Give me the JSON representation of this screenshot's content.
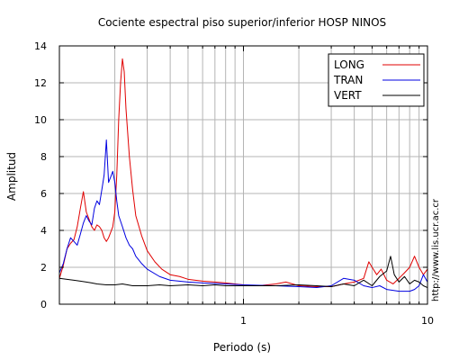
{
  "chart_data": {
    "type": "line",
    "title": "Cociente espectral piso superior/inferior  HOSP NINOS",
    "xlabel": "Periodo (s)",
    "ylabel": "Amplitud",
    "x_scale": "log",
    "xlim": [
      0.1,
      10
    ],
    "ylim": [
      0,
      14
    ],
    "x_tick_labels": [
      {
        "value": 1,
        "label": "1"
      },
      {
        "value": 10,
        "label": "10"
      }
    ],
    "y_ticks": [
      {
        "value": 0,
        "label": "0"
      },
      {
        "value": 2,
        "label": "2"
      },
      {
        "value": 4,
        "label": "4"
      },
      {
        "value": 6,
        "label": "6"
      },
      {
        "value": 8,
        "label": "8"
      },
      {
        "value": 10,
        "label": "10"
      },
      {
        "value": 12,
        "label": "12"
      },
      {
        "value": 14,
        "label": "14"
      }
    ],
    "grid": true,
    "legend_position": "top-right",
    "series": [
      {
        "name": "LONG",
        "color": "#e00000",
        "points": [
          [
            0.1,
            1.4
          ],
          [
            0.105,
            2.1
          ],
          [
            0.11,
            3.0
          ],
          [
            0.115,
            3.3
          ],
          [
            0.12,
            3.5
          ],
          [
            0.125,
            4.2
          ],
          [
            0.13,
            5.2
          ],
          [
            0.135,
            6.1
          ],
          [
            0.14,
            5.0
          ],
          [
            0.145,
            4.6
          ],
          [
            0.15,
            4.2
          ],
          [
            0.155,
            4.0
          ],
          [
            0.16,
            4.3
          ],
          [
            0.165,
            4.2
          ],
          [
            0.17,
            4.0
          ],
          [
            0.175,
            3.6
          ],
          [
            0.18,
            3.4
          ],
          [
            0.185,
            3.6
          ],
          [
            0.19,
            3.9
          ],
          [
            0.195,
            4.2
          ],
          [
            0.2,
            5.0
          ],
          [
            0.205,
            7.0
          ],
          [
            0.21,
            10.0
          ],
          [
            0.215,
            12.0
          ],
          [
            0.22,
            13.3
          ],
          [
            0.225,
            12.6
          ],
          [
            0.23,
            10.6
          ],
          [
            0.24,
            8.0
          ],
          [
            0.25,
            6.2
          ],
          [
            0.26,
            4.8
          ],
          [
            0.28,
            3.7
          ],
          [
            0.3,
            2.9
          ],
          [
            0.33,
            2.3
          ],
          [
            0.36,
            1.9
          ],
          [
            0.4,
            1.6
          ],
          [
            0.45,
            1.5
          ],
          [
            0.5,
            1.35
          ],
          [
            0.6,
            1.25
          ],
          [
            0.7,
            1.2
          ],
          [
            0.8,
            1.15
          ],
          [
            0.9,
            1.1
          ],
          [
            1.0,
            1.05
          ],
          [
            1.2,
            1.0
          ],
          [
            1.5,
            1.1
          ],
          [
            1.7,
            1.2
          ],
          [
            2.0,
            1.0
          ],
          [
            2.5,
            0.95
          ],
          [
            3.0,
            0.95
          ],
          [
            3.5,
            1.1
          ],
          [
            4.0,
            1.2
          ],
          [
            4.5,
            1.4
          ],
          [
            4.8,
            2.3
          ],
          [
            5.0,
            2.0
          ],
          [
            5.3,
            1.6
          ],
          [
            5.6,
            1.9
          ],
          [
            6.0,
            1.3
          ],
          [
            6.5,
            1.1
          ],
          [
            7.0,
            1.4
          ],
          [
            7.5,
            1.7
          ],
          [
            8.0,
            2.0
          ],
          [
            8.5,
            2.6
          ],
          [
            9.0,
            2.0
          ],
          [
            9.5,
            1.6
          ],
          [
            10.0,
            1.9
          ]
        ]
      },
      {
        "name": "TRAN",
        "color": "#0000e0",
        "points": [
          [
            0.1,
            1.7
          ],
          [
            0.105,
            2.2
          ],
          [
            0.11,
            3.0
          ],
          [
            0.115,
            3.6
          ],
          [
            0.12,
            3.4
          ],
          [
            0.125,
            3.2
          ],
          [
            0.13,
            3.8
          ],
          [
            0.135,
            4.4
          ],
          [
            0.14,
            4.8
          ],
          [
            0.145,
            4.5
          ],
          [
            0.15,
            4.3
          ],
          [
            0.155,
            5.2
          ],
          [
            0.16,
            5.6
          ],
          [
            0.165,
            5.4
          ],
          [
            0.17,
            6.2
          ],
          [
            0.175,
            7.0
          ],
          [
            0.18,
            8.9
          ],
          [
            0.185,
            6.6
          ],
          [
            0.19,
            6.9
          ],
          [
            0.195,
            7.2
          ],
          [
            0.2,
            6.6
          ],
          [
            0.205,
            5.6
          ],
          [
            0.21,
            4.8
          ],
          [
            0.22,
            4.2
          ],
          [
            0.23,
            3.6
          ],
          [
            0.24,
            3.2
          ],
          [
            0.25,
            3.0
          ],
          [
            0.26,
            2.6
          ],
          [
            0.28,
            2.2
          ],
          [
            0.3,
            1.9
          ],
          [
            0.35,
            1.5
          ],
          [
            0.4,
            1.3
          ],
          [
            0.5,
            1.2
          ],
          [
            0.6,
            1.15
          ],
          [
            0.8,
            1.1
          ],
          [
            1.0,
            1.05
          ],
          [
            1.5,
            1.0
          ],
          [
            2.0,
            0.95
          ],
          [
            2.5,
            0.9
          ],
          [
            3.0,
            1.0
          ],
          [
            3.5,
            1.4
          ],
          [
            4.0,
            1.3
          ],
          [
            4.5,
            1.0
          ],
          [
            5.0,
            0.9
          ],
          [
            5.5,
            1.0
          ],
          [
            6.0,
            0.8
          ],
          [
            6.5,
            0.75
          ],
          [
            7.0,
            0.7
          ],
          [
            7.5,
            0.7
          ],
          [
            8.0,
            0.7
          ],
          [
            8.5,
            0.8
          ],
          [
            9.0,
            1.0
          ],
          [
            9.5,
            1.6
          ],
          [
            10.0,
            1.2
          ]
        ]
      },
      {
        "name": "VERT",
        "color": "#000000",
        "points": [
          [
            0.1,
            1.4
          ],
          [
            0.11,
            1.35
          ],
          [
            0.12,
            1.3
          ],
          [
            0.13,
            1.25
          ],
          [
            0.14,
            1.2
          ],
          [
            0.15,
            1.15
          ],
          [
            0.16,
            1.1
          ],
          [
            0.18,
            1.05
          ],
          [
            0.2,
            1.05
          ],
          [
            0.22,
            1.1
          ],
          [
            0.25,
            1.0
          ],
          [
            0.3,
            1.0
          ],
          [
            0.35,
            1.05
          ],
          [
            0.4,
            1.0
          ],
          [
            0.5,
            1.05
          ],
          [
            0.6,
            1.0
          ],
          [
            0.7,
            1.05
          ],
          [
            0.8,
            1.0
          ],
          [
            1.0,
            1.0
          ],
          [
            1.5,
            1.0
          ],
          [
            2.0,
            1.05
          ],
          [
            2.5,
            1.0
          ],
          [
            3.0,
            0.95
          ],
          [
            3.5,
            1.1
          ],
          [
            4.0,
            1.0
          ],
          [
            4.5,
            1.3
          ],
          [
            5.0,
            1.0
          ],
          [
            5.5,
            1.5
          ],
          [
            6.0,
            1.8
          ],
          [
            6.3,
            2.6
          ],
          [
            6.6,
            1.6
          ],
          [
            7.0,
            1.2
          ],
          [
            7.5,
            1.5
          ],
          [
            8.0,
            1.1
          ],
          [
            8.5,
            1.3
          ],
          [
            9.0,
            1.2
          ],
          [
            9.5,
            1.0
          ],
          [
            10.0,
            0.9
          ]
        ]
      }
    ],
    "annotation": "http://www.lis.ucr.ac.cr"
  }
}
